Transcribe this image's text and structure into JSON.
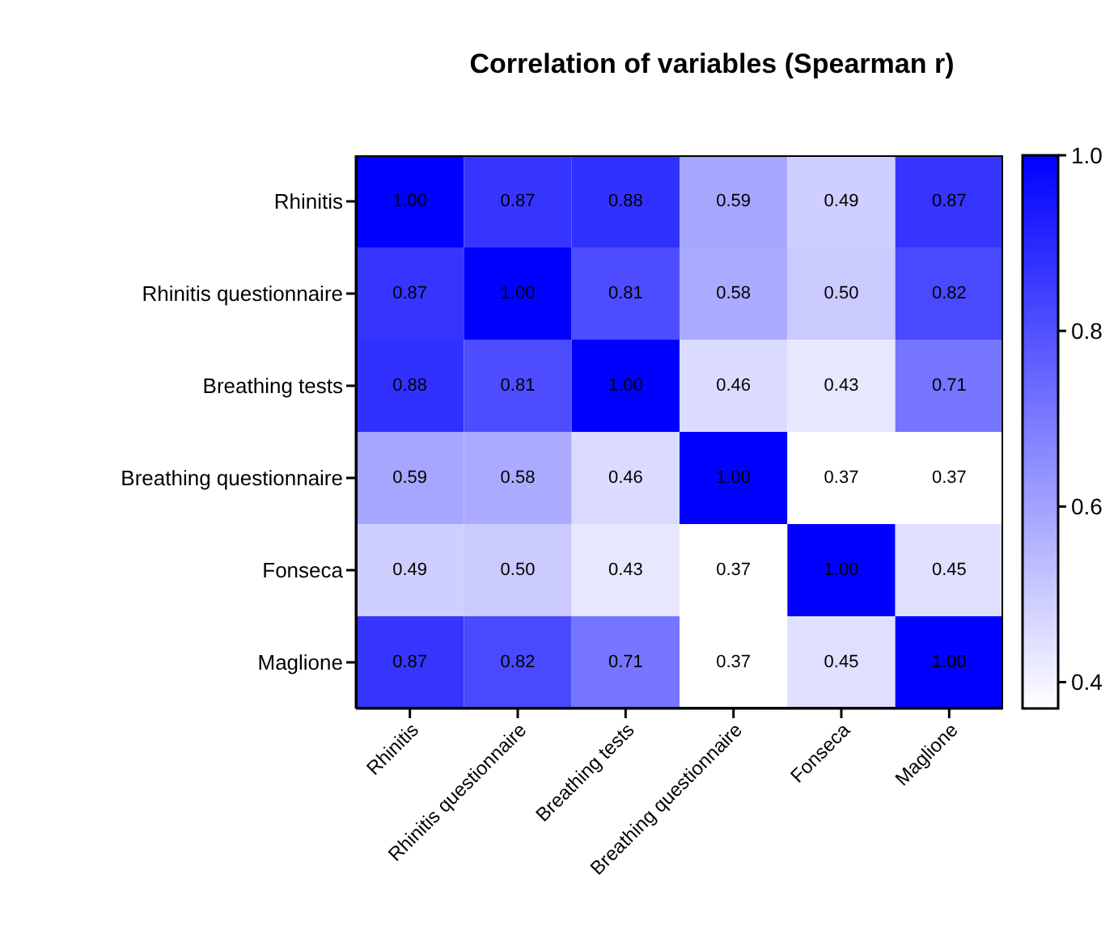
{
  "chart_data": {
    "type": "heatmap",
    "title": "Correlation of variables (Spearman r)",
    "categories": [
      "Rhinitis",
      "Rhinitis questionnaire",
      "Breathing tests",
      "Breathing questionnaire",
      "Fonseca",
      "Maglione"
    ],
    "y_categories": [
      "Rhinitis",
      "Rhinitis questionnaire",
      "Breathing tests",
      "Breathing questionnaire",
      "Fonseca",
      "Maglione"
    ],
    "cells": [
      [
        1.0,
        0.87,
        0.88,
        0.59,
        0.49,
        0.87
      ],
      [
        0.87,
        1.0,
        0.81,
        0.58,
        0.5,
        0.82
      ],
      [
        0.88,
        0.81,
        1.0,
        0.46,
        0.43,
        0.71
      ],
      [
        0.59,
        0.58,
        0.46,
        1.0,
        0.37,
        0.37
      ],
      [
        0.49,
        0.5,
        0.43,
        0.37,
        1.0,
        0.45
      ],
      [
        0.87,
        0.82,
        0.71,
        0.37,
        0.45,
        1.0
      ]
    ],
    "cell_labels": [
      [
        "1.00",
        "0.87",
        "0.88",
        "0.59",
        "0.49",
        "0.87"
      ],
      [
        "0.87",
        "1.00",
        "0.81",
        "0.58",
        "0.50",
        "0.82"
      ],
      [
        "0.88",
        "0.81",
        "1.00",
        "0.46",
        "0.43",
        "0.71"
      ],
      [
        "0.59",
        "0.58",
        "0.46",
        "1.00",
        "0.37",
        "0.37"
      ],
      [
        "0.49",
        "0.50",
        "0.43",
        "0.37",
        "1.00",
        "0.45"
      ],
      [
        "0.87",
        "0.82",
        "0.71",
        "0.37",
        "0.45",
        "1.00"
      ]
    ],
    "clim": [
      0.37,
      1.0
    ],
    "cticks": [
      0.4,
      0.6,
      0.8,
      {
        "value": 1,
        "label": "1.0"
      }
    ],
    "color": "#0000ff"
  }
}
